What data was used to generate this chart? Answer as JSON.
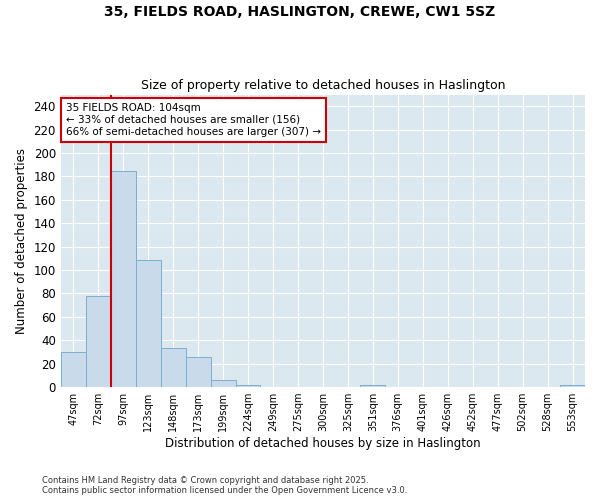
{
  "title_line1": "35, FIELDS ROAD, HASLINGTON, CREWE, CW1 5SZ",
  "title_line2": "Size of property relative to detached houses in Haslington",
  "xlabel": "Distribution of detached houses by size in Haslington",
  "ylabel": "Number of detached properties",
  "categories": [
    "47sqm",
    "72sqm",
    "97sqm",
    "123sqm",
    "148sqm",
    "173sqm",
    "199sqm",
    "224sqm",
    "249sqm",
    "275sqm",
    "300sqm",
    "325sqm",
    "351sqm",
    "376sqm",
    "401sqm",
    "426sqm",
    "452sqm",
    "477sqm",
    "502sqm",
    "528sqm",
    "553sqm"
  ],
  "values": [
    30,
    78,
    185,
    109,
    33,
    26,
    6,
    2,
    0,
    0,
    0,
    0,
    2,
    0,
    0,
    0,
    0,
    0,
    0,
    0,
    2
  ],
  "bar_color": "#c9daea",
  "bar_edge_color": "#7aaed0",
  "vline_color": "#cc0000",
  "annotation_text": "35 FIELDS ROAD: 104sqm\n← 33% of detached houses are smaller (156)\n66% of semi-detached houses are larger (307) →",
  "annotation_box_color": "#ffffff",
  "annotation_box_edge": "#cc0000",
  "ylim": [
    0,
    250
  ],
  "yticks": [
    0,
    20,
    40,
    60,
    80,
    100,
    120,
    140,
    160,
    180,
    200,
    220,
    240
  ],
  "fig_background": "#ffffff",
  "ax_background": "#dce8f0",
  "grid_color": "#ffffff",
  "footer_line1": "Contains HM Land Registry data © Crown copyright and database right 2025.",
  "footer_line2": "Contains public sector information licensed under the Open Government Licence v3.0."
}
